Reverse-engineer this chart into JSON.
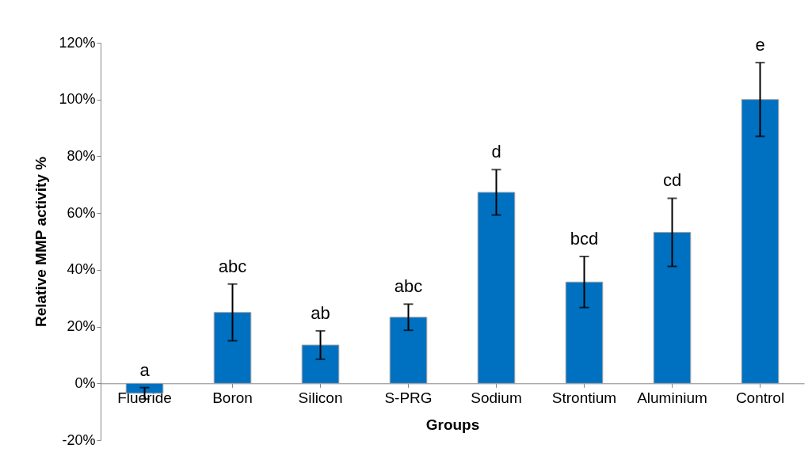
{
  "chart_data": {
    "type": "bar",
    "xlabel": "Groups",
    "ylabel": "Relative MMP activity %",
    "categories": [
      "Fluoride",
      "Boron",
      "Silicon",
      "S-PRG",
      "Sodium",
      "Strontium",
      "Aluminium",
      "Control"
    ],
    "values": [
      -3.5,
      25,
      13.5,
      23.3,
      67.3,
      35.7,
      53.2,
      100
    ],
    "errors": [
      2,
      10,
      5,
      4.6,
      8,
      9,
      12,
      13
    ],
    "color": "#0070c0",
    "ylim": [
      -20,
      120
    ],
    "yticks": [
      {
        "value": -20,
        "label": "-20%"
      },
      {
        "value": 0,
        "label": "0%"
      },
      {
        "value": 20,
        "label": "20%"
      },
      {
        "value": 40,
        "label": "40%"
      },
      {
        "value": 60,
        "label": "60%"
      },
      {
        "value": 80,
        "label": "80%"
      },
      {
        "value": 100,
        "label": "100%"
      },
      {
        "value": 120,
        "label": "120%"
      }
    ],
    "annotations": [
      {
        "text": "a",
        "x": "Fluoride",
        "y": -1.5
      },
      {
        "text": "abc",
        "x": "Boron",
        "y": 35
      },
      {
        "text": "ab",
        "x": "Silicon",
        "y": 18.5
      },
      {
        "text": "abc",
        "x": "S-PRG",
        "y": 27.9
      },
      {
        "text": "d",
        "x": "Sodium",
        "y": 75.3
      },
      {
        "text": "bcd",
        "x": "Strontium",
        "y": 44.7
      },
      {
        "text": "cd",
        "x": "Aluminium",
        "y": 65.2
      },
      {
        "text": "e",
        "x": "Control",
        "y": 113
      }
    ],
    "grid": false
  }
}
